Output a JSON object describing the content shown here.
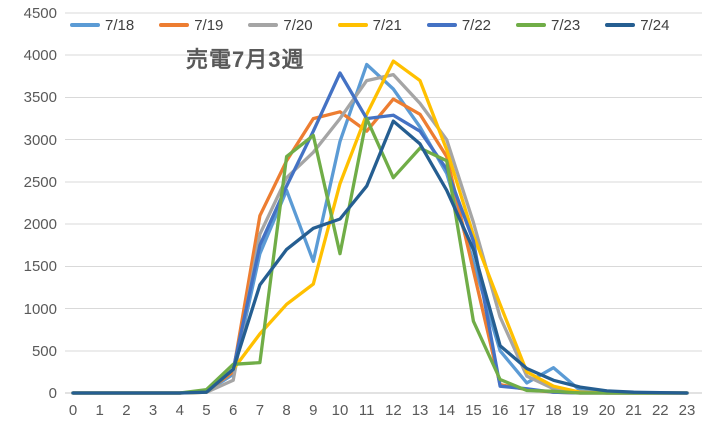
{
  "title": "売電7月3週",
  "colors": {
    "background": "#FFFFFF",
    "gridline": "#D9D9D9",
    "axis_line": "#C6C6C6",
    "axis_text": "#595959",
    "legend_text": "#404040",
    "title_text": "#595959"
  },
  "chart_data": {
    "type": "line",
    "title": "売電7月3週",
    "x": [
      0,
      1,
      2,
      3,
      4,
      5,
      6,
      7,
      8,
      9,
      10,
      11,
      12,
      13,
      14,
      15,
      16,
      17,
      18,
      19,
      20,
      21,
      22,
      23
    ],
    "x_tick_labels": [
      "0",
      "1",
      "2",
      "3",
      "4",
      "5",
      "6",
      "7",
      "8",
      "9",
      "10",
      "11",
      "12",
      "13",
      "14",
      "15",
      "16",
      "17",
      "18",
      "19",
      "20",
      "21",
      "22",
      "23"
    ],
    "y_tick_labels": [
      "0",
      "500",
      "1000",
      "1500",
      "2000",
      "2500",
      "3000",
      "3500",
      "4000",
      "4500"
    ],
    "ylim": [
      0,
      4500
    ],
    "ytick_step": 500,
    "grid": "horizontal",
    "legend_position": "top",
    "series": [
      {
        "name": "7/18",
        "color": "#5B9BD5",
        "values": [
          0,
          0,
          0,
          0,
          0,
          20,
          220,
          1650,
          2400,
          1560,
          2980,
          3890,
          3600,
          3150,
          2600,
          1550,
          500,
          120,
          300,
          30,
          0,
          0,
          0,
          0
        ]
      },
      {
        "name": "7/19",
        "color": "#ED7D31",
        "values": [
          0,
          0,
          0,
          0,
          0,
          20,
          250,
          2100,
          2750,
          3250,
          3330,
          3100,
          3480,
          3300,
          2800,
          1450,
          100,
          40,
          10,
          0,
          0,
          0,
          0,
          0
        ]
      },
      {
        "name": "7/20",
        "color": "#A5A5A5",
        "values": [
          0,
          0,
          0,
          0,
          0,
          10,
          150,
          1880,
          2550,
          2850,
          3250,
          3700,
          3770,
          3430,
          3000,
          2020,
          900,
          200,
          50,
          10,
          0,
          0,
          0,
          0
        ]
      },
      {
        "name": "7/21",
        "color": "#FFC000",
        "values": [
          0,
          0,
          0,
          0,
          0,
          10,
          280,
          700,
          1050,
          1290,
          2480,
          3300,
          3930,
          3700,
          2880,
          1870,
          1050,
          250,
          80,
          10,
          0,
          0,
          0,
          0
        ]
      },
      {
        "name": "7/22",
        "color": "#4472C4",
        "values": [
          0,
          0,
          0,
          0,
          0,
          20,
          280,
          1750,
          2450,
          3100,
          3790,
          3250,
          3290,
          3100,
          2650,
          1800,
          80,
          50,
          10,
          0,
          0,
          0,
          0,
          0
        ]
      },
      {
        "name": "7/23",
        "color": "#70AD47",
        "values": [
          0,
          0,
          0,
          0,
          0,
          40,
          340,
          360,
          2800,
          3050,
          1650,
          3250,
          2550,
          2900,
          2750,
          850,
          160,
          30,
          20,
          0,
          0,
          0,
          0,
          0
        ]
      },
      {
        "name": "7/24",
        "color": "#255E91",
        "values": [
          0,
          0,
          0,
          0,
          0,
          10,
          280,
          1280,
          1700,
          1950,
          2060,
          2450,
          3220,
          2950,
          2400,
          1700,
          560,
          290,
          150,
          70,
          25,
          10,
          5,
          0
        ]
      }
    ]
  }
}
